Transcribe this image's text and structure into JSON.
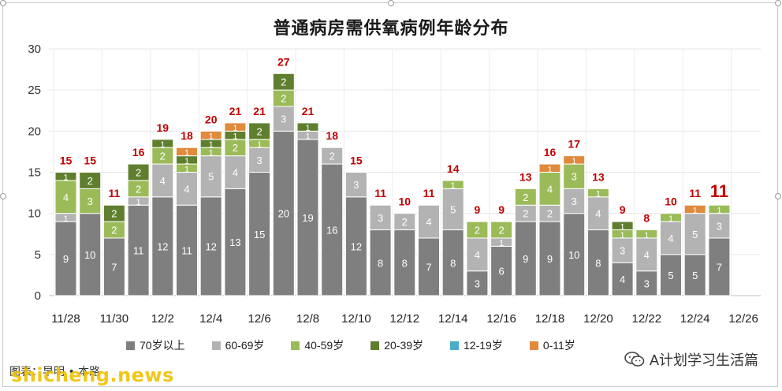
{
  "title": "普通病房需供氧病例年龄分布",
  "source_text": "图表：早明 • 本路",
  "watermark_left": "shicheng.news",
  "watermark_right": "A计划学习生活篇",
  "colors": {
    "70+": "#7f7f7f",
    "60-69": "#b3b3b3",
    "40-59": "#9bbb59",
    "20-39": "#5f7f2f",
    "12-19": "#4aacc6",
    "0-11": "#e08a3c",
    "total_label": "#c00000"
  },
  "legend": [
    {
      "key": "70+",
      "label": "70岁以上"
    },
    {
      "key": "60-69",
      "label": "60-69岁"
    },
    {
      "key": "40-59",
      "label": "40-59岁"
    },
    {
      "key": "20-39",
      "label": "20-39岁"
    },
    {
      "key": "12-19",
      "label": "12-19岁"
    },
    {
      "key": "0-11",
      "label": "0-11岁"
    }
  ],
  "chart_data": {
    "type": "bar",
    "stacked": true,
    "title": "普通病房需供氧病例年龄分布",
    "ylim": [
      0,
      30
    ],
    "yticks": [
      0,
      5,
      10,
      15,
      20,
      25,
      30
    ],
    "xtick_labels": [
      "11/28",
      "11/30",
      "12/2",
      "12/4",
      "12/6",
      "12/8",
      "12/10",
      "12/12",
      "12/14",
      "12/16",
      "12/18",
      "12/20",
      "12/22",
      "12/24",
      "12/26"
    ],
    "categories": [
      "11/28",
      "11/29",
      "11/30",
      "12/1",
      "12/2",
      "12/3",
      "12/4",
      "12/5",
      "12/6",
      "12/7",
      "12/8",
      "12/9",
      "12/10",
      "12/11",
      "12/12",
      "12/13",
      "12/14",
      "12/15",
      "12/16",
      "12/17",
      "12/18",
      "12/19",
      "12/20",
      "12/21",
      "12/22",
      "12/23",
      "12/24",
      "12/25"
    ],
    "totals": [
      15,
      15,
      11,
      16,
      19,
      18,
      20,
      21,
      21,
      27,
      21,
      18,
      15,
      11,
      10,
      11,
      14,
      9,
      9,
      13,
      16,
      17,
      13,
      9,
      8,
      10,
      11,
      11
    ],
    "series": [
      {
        "name": "70岁以上",
        "key": "70+",
        "values": [
          9,
          10,
          7,
          11,
          12,
          11,
          12,
          13,
          15,
          20,
          19,
          16,
          12,
          8,
          8,
          7,
          8,
          3,
          6,
          9,
          9,
          10,
          8,
          4,
          3,
          5,
          5,
          7
        ]
      },
      {
        "name": "60-69岁",
        "key": "60-69",
        "values": [
          1,
          0,
          0,
          1,
          4,
          4,
          5,
          4,
          3,
          3,
          1,
          2,
          3,
          3,
          2,
          4,
          5,
          4,
          1,
          2,
          2,
          3,
          4,
          3,
          4,
          4,
          5,
          3
        ]
      },
      {
        "name": "40-59岁",
        "key": "40-59",
        "values": [
          4,
          3,
          2,
          2,
          2,
          1,
          1,
          2,
          1,
          2,
          0,
          0,
          0,
          0,
          0,
          0,
          1,
          2,
          2,
          2,
          4,
          3,
          1,
          1,
          1,
          1,
          0,
          1
        ]
      },
      {
        "name": "20-39岁",
        "key": "20-39",
        "values": [
          1,
          2,
          2,
          2,
          1,
          1,
          1,
          1,
          2,
          2,
          1,
          0,
          0,
          0,
          0,
          0,
          0,
          0,
          0,
          0,
          0,
          0,
          0,
          1,
          0,
          0,
          0,
          0
        ]
      },
      {
        "name": "12-19岁",
        "key": "12-19",
        "values": [
          0,
          0,
          0,
          0,
          0,
          0,
          0,
          0,
          0,
          0,
          0,
          0,
          0,
          0,
          0,
          0,
          0,
          0,
          0,
          0,
          0,
          0,
          0,
          0,
          0,
          0,
          0,
          0
        ]
      },
      {
        "name": "0-11岁",
        "key": "0-11",
        "values": [
          0,
          0,
          0,
          0,
          0,
          1,
          1,
          1,
          0,
          0,
          0,
          0,
          0,
          0,
          0,
          0,
          0,
          0,
          0,
          0,
          1,
          1,
          0,
          0,
          0,
          0,
          1,
          0
        ]
      }
    ],
    "label_min_value": 2
  }
}
